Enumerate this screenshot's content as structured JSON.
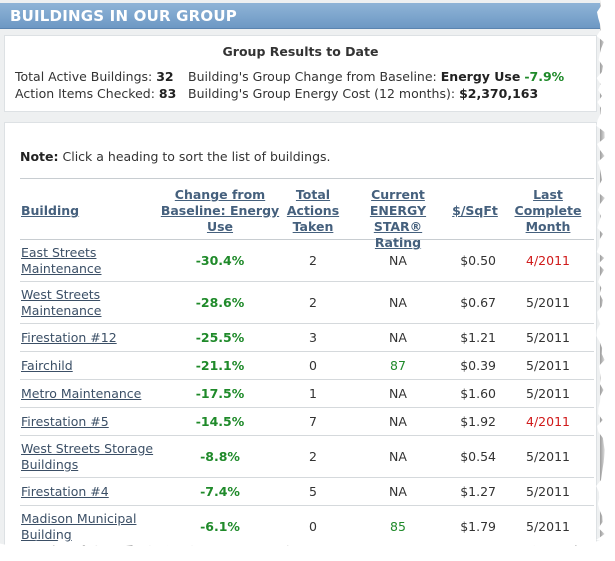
{
  "header": {
    "title": "BUILDINGS IN OUR GROUP"
  },
  "summary": {
    "title": "Group Results to Date",
    "active_label": "Total Active Buildings:",
    "active_value": "32",
    "actions_label": "Action Items Checked:",
    "actions_value": "83",
    "change_label": "Building's Group Change from Baseline:",
    "change_metric": "Energy Use",
    "change_value": "-7.9%",
    "cost_label": "Building's Group Energy Cost (12 months):",
    "cost_value": "$2,370,163"
  },
  "note": {
    "label": "Note:",
    "text": "Click a heading to sort the list of buildings."
  },
  "table": {
    "headers": {
      "building": "Building",
      "change_1": "Change from",
      "change_2": "Baseline: Energy",
      "change_3": "Use",
      "actions_1": "Total",
      "actions_2": "Actions",
      "actions_3": "Taken",
      "rating_1": "Current",
      "rating_2": "ENERGY STAR®",
      "rating_3": "Rating",
      "cost": "$/SqFt",
      "month_1": "Last",
      "month_2": "Complete",
      "month_3": "Month"
    },
    "rows": [
      {
        "name_1": "East Streets",
        "name_2": "Maintenance",
        "change": "-30.4%",
        "actions": "2",
        "rating": "NA",
        "cost": "$0.50",
        "month": "4/2011"
      },
      {
        "name_1": "West Streets",
        "name_2": "Maintenance",
        "change": "-28.6%",
        "actions": "2",
        "rating": "NA",
        "cost": "$0.67",
        "month": "5/2011"
      },
      {
        "name_1": "Firestation #12",
        "name_2": "",
        "change": "-25.5%",
        "actions": "3",
        "rating": "NA",
        "cost": "$1.21",
        "month": "5/2011"
      },
      {
        "name_1": "Fairchild",
        "name_2": "",
        "change": "-21.1%",
        "actions": "0",
        "rating": "87",
        "cost": "$0.39",
        "month": "5/2011"
      },
      {
        "name_1": "Metro Maintenance",
        "name_2": "",
        "change": "-17.5%",
        "actions": "1",
        "rating": "NA",
        "cost": "$1.60",
        "month": "5/2011"
      },
      {
        "name_1": "Firestation #5",
        "name_2": "",
        "change": "-14.5%",
        "actions": "7",
        "rating": "NA",
        "cost": "$1.92",
        "month": "4/2011"
      },
      {
        "name_1": "West Streets Storage",
        "name_2": "Buildings",
        "change": "-8.8%",
        "actions": "2",
        "rating": "NA",
        "cost": "$0.54",
        "month": "5/2011"
      },
      {
        "name_1": "Firestation #4",
        "name_2": "",
        "change": "-7.4%",
        "actions": "5",
        "rating": "NA",
        "cost": "$1.27",
        "month": "5/2011"
      },
      {
        "name_1": "Madison Municipal",
        "name_2": "Building",
        "change": "-6.1%",
        "actions": "0",
        "rating": "85",
        "cost": "$1.79",
        "month": "5/2011"
      }
    ]
  },
  "colors": {
    "header_bar": "#7aa3cc",
    "positive_green": "#1f8a2a",
    "late_red": "#d01a1a",
    "link": "#3b4f66"
  }
}
